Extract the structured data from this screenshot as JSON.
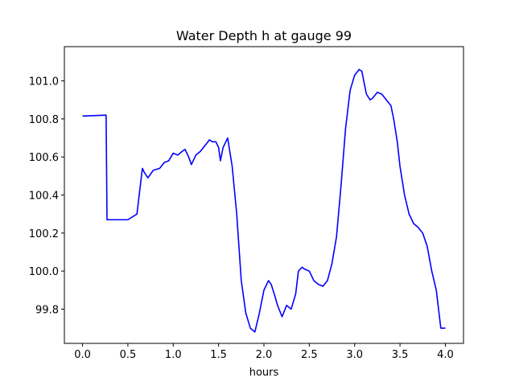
{
  "chart_data": {
    "type": "line",
    "title": "Water Depth h at gauge 99",
    "xlabel": "hours",
    "ylabel": "",
    "xlim": [
      -0.2,
      4.2
    ],
    "ylim": [
      99.62,
      101.18
    ],
    "x_ticks": [
      0.0,
      0.5,
      1.0,
      1.5,
      2.0,
      2.5,
      3.0,
      3.5,
      4.0
    ],
    "x_tick_labels": [
      "0.0",
      "0.5",
      "1.0",
      "1.5",
      "2.0",
      "2.5",
      "3.0",
      "3.5",
      "4.0"
    ],
    "y_ticks": [
      99.8,
      100.0,
      100.2,
      100.4,
      100.6,
      100.8,
      101.0
    ],
    "y_tick_labels": [
      "99.8",
      "100.0",
      "100.2",
      "100.4",
      "100.6",
      "100.8",
      "101.0"
    ],
    "grid": false,
    "legend": "none",
    "series": [
      {
        "color": "#0000ff",
        "x": [
          0.0,
          0.26,
          0.265,
          0.27,
          0.4,
          0.5,
          0.6,
          0.63,
          0.66,
          0.68,
          0.72,
          0.78,
          0.85,
          0.9,
          0.95,
          1.0,
          1.05,
          1.1,
          1.13,
          1.17,
          1.2,
          1.25,
          1.3,
          1.35,
          1.4,
          1.43,
          1.47,
          1.5,
          1.52,
          1.55,
          1.6,
          1.65,
          1.7,
          1.75,
          1.8,
          1.85,
          1.9,
          1.95,
          2.0,
          2.05,
          2.08,
          2.12,
          2.15,
          2.2,
          2.25,
          2.3,
          2.35,
          2.38,
          2.42,
          2.45,
          2.5,
          2.55,
          2.6,
          2.65,
          2.7,
          2.75,
          2.8,
          2.85,
          2.9,
          2.95,
          3.0,
          3.05,
          3.08,
          3.1,
          3.13,
          3.17,
          3.2,
          3.25,
          3.3,
          3.35,
          3.4,
          3.43,
          3.47,
          3.5,
          3.55,
          3.6,
          3.65,
          3.7,
          3.75,
          3.8,
          3.85,
          3.9,
          3.95,
          4.0
        ],
        "y": [
          100.815,
          100.82,
          100.55,
          100.27,
          100.27,
          100.27,
          100.3,
          100.42,
          100.54,
          100.52,
          100.49,
          100.53,
          100.54,
          100.57,
          100.58,
          100.62,
          100.61,
          100.63,
          100.64,
          100.6,
          100.56,
          100.61,
          100.63,
          100.66,
          100.69,
          100.68,
          100.68,
          100.65,
          100.58,
          100.65,
          100.7,
          100.55,
          100.3,
          99.95,
          99.78,
          99.7,
          99.68,
          99.78,
          99.9,
          99.95,
          99.93,
          99.87,
          99.82,
          99.76,
          99.82,
          99.8,
          99.88,
          100.0,
          100.02,
          100.01,
          100.0,
          99.95,
          99.93,
          99.92,
          99.95,
          100.04,
          100.18,
          100.45,
          100.75,
          100.95,
          101.03,
          101.06,
          101.05,
          101.0,
          100.93,
          100.9,
          100.91,
          100.94,
          100.93,
          100.9,
          100.87,
          100.8,
          100.68,
          100.55,
          100.4,
          100.3,
          100.25,
          100.23,
          100.2,
          100.13,
          100.0,
          99.9,
          99.7,
          99.7
        ]
      }
    ]
  }
}
